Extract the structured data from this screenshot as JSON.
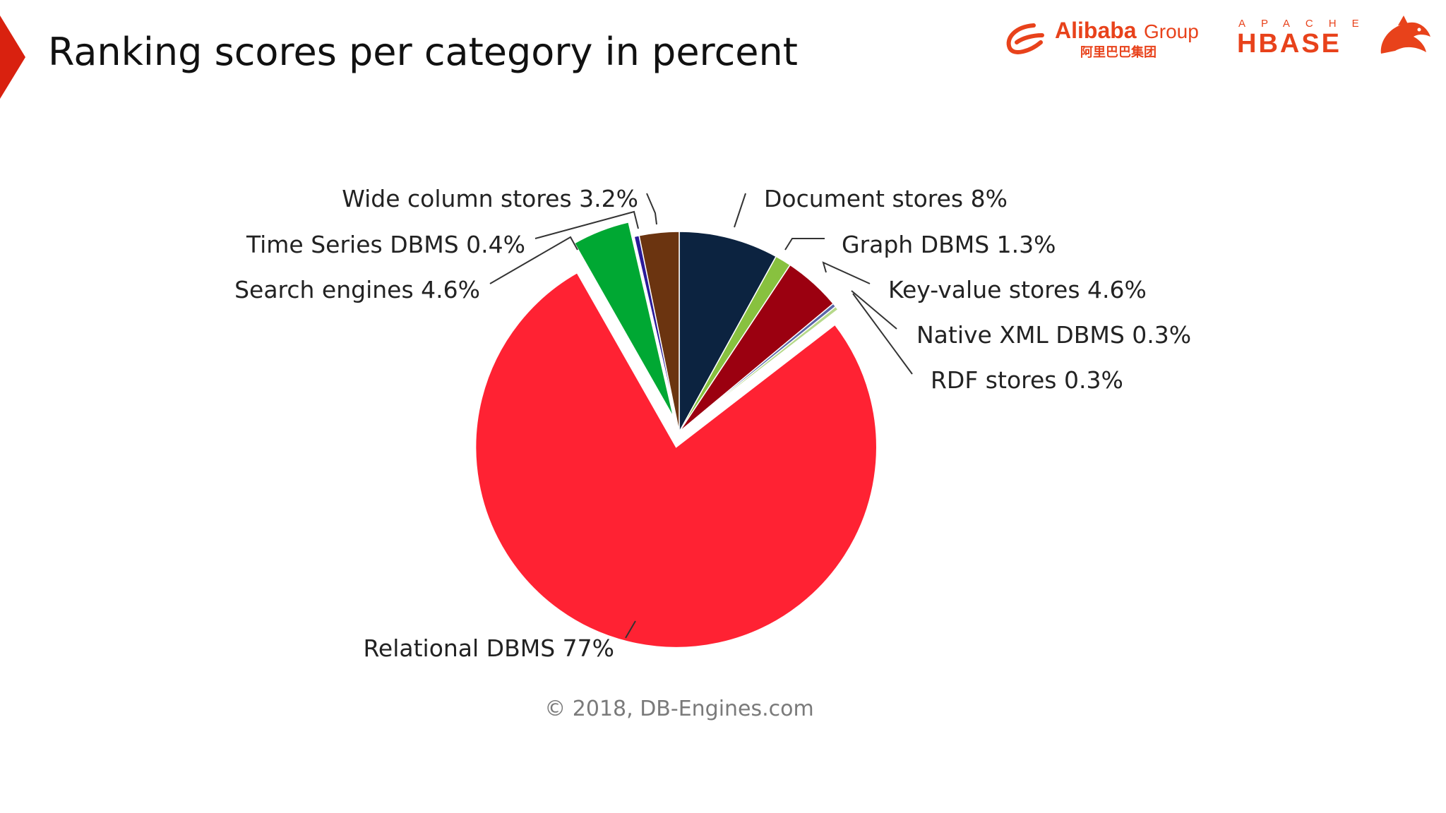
{
  "slide": {
    "title": "Ranking scores per category in percent",
    "accent_color": "#d9210f",
    "logos": {
      "alibaba": {
        "text": "Alibaba",
        "group": "Group",
        "chinese": "阿里巴巴集团",
        "color": "#e8421b"
      },
      "hbase": {
        "apache": "APACHE",
        "name": "HBASE",
        "color": "#e8421b"
      }
    }
  },
  "chart_data": {
    "type": "pie",
    "title": "",
    "exploded": [
      "Relational DBMS",
      "Search engines"
    ],
    "slices": [
      {
        "label": "Document stores 8%",
        "name": "Document stores",
        "value": 8,
        "color": "#0c2340"
      },
      {
        "label": "Graph DBMS 1.3%",
        "name": "Graph DBMS",
        "value": 1.3,
        "color": "#88c13f"
      },
      {
        "label": "Key-value stores 4.6%",
        "name": "Key-value stores",
        "value": 4.6,
        "color": "#9b0010"
      },
      {
        "label": "Native XML DBMS 0.3%",
        "name": "Native XML DBMS",
        "value": 0.3,
        "color": "#5a66a8"
      },
      {
        "label": "RDF stores 0.3%",
        "name": "RDF stores",
        "value": 0.3,
        "color": "#b6d98a"
      },
      {
        "label": "Relational DBMS 77%",
        "name": "Relational DBMS",
        "value": 77,
        "color": "#ff2233"
      },
      {
        "label": "Search engines 4.6%",
        "name": "Search engines",
        "value": 4.6,
        "color": "#00a833"
      },
      {
        "label": "Time Series DBMS 0.4%",
        "name": "Time Series DBMS",
        "value": 0.4,
        "color": "#2a1a99"
      },
      {
        "label": "Wide column stores 3.2%",
        "name": "Wide column stores",
        "value": 3.2,
        "color": "#6b3410"
      }
    ],
    "source": "© 2018, DB-Engines.com"
  }
}
